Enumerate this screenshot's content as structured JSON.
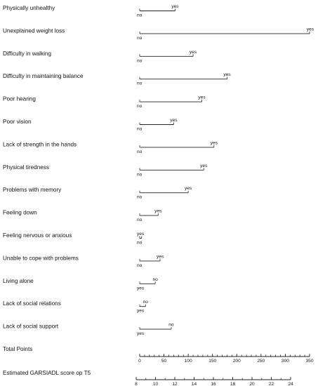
{
  "chart_data": {
    "type": "nomogram",
    "predictors": [
      {
        "label": "Physically unhealthy",
        "levels": [
          {
            "name": "no",
            "points": 0
          },
          {
            "name": "yes",
            "points": 73
          }
        ]
      },
      {
        "label": "Unexplained weight loss",
        "levels": [
          {
            "name": "no",
            "points": 0
          },
          {
            "name": "yes",
            "points": 350
          }
        ]
      },
      {
        "label": "Difficulty in walking",
        "levels": [
          {
            "name": "no",
            "points": 0
          },
          {
            "name": "yes",
            "points": 110
          }
        ]
      },
      {
        "label": "Difficulty in maintaining balance",
        "levels": [
          {
            "name": "no",
            "points": 0
          },
          {
            "name": "yes",
            "points": 180
          }
        ]
      },
      {
        "label": "Poor hearing",
        "levels": [
          {
            "name": "no",
            "points": 0
          },
          {
            "name": "yes",
            "points": 128
          }
        ]
      },
      {
        "label": "Poor vision",
        "levels": [
          {
            "name": "no",
            "points": 0
          },
          {
            "name": "yes",
            "points": 70
          }
        ]
      },
      {
        "label": "Lack of strength in the hands",
        "levels": [
          {
            "name": "no",
            "points": 0
          },
          {
            "name": "yes",
            "points": 153
          }
        ]
      },
      {
        "label": "Physical tiredness",
        "levels": [
          {
            "name": "no",
            "points": 0
          },
          {
            "name": "yes",
            "points": 132
          }
        ]
      },
      {
        "label": "Problems with memory",
        "levels": [
          {
            "name": "no",
            "points": 0
          },
          {
            "name": "yes",
            "points": 100
          }
        ]
      },
      {
        "label": "Feeling down",
        "levels": [
          {
            "name": "no",
            "points": 0
          },
          {
            "name": "yes",
            "points": 38
          }
        ]
      },
      {
        "label": "Feeling nervous or anxious",
        "levels": [
          {
            "name": "no",
            "points": 0
          },
          {
            "name": "yes",
            "points": 4
          }
        ]
      },
      {
        "label": "Unable to cope with problems",
        "levels": [
          {
            "name": "no",
            "points": 0
          },
          {
            "name": "yes",
            "points": 42
          }
        ]
      },
      {
        "label": "Living alone",
        "levels": [
          {
            "name": "yes",
            "points": 0
          },
          {
            "name": "no",
            "points": 32
          }
        ]
      },
      {
        "label": "Lack of social relations",
        "levels": [
          {
            "name": "yes",
            "points": 0
          },
          {
            "name": "no",
            "points": 12
          }
        ]
      },
      {
        "label": "Lack of social support",
        "levels": [
          {
            "name": "yes",
            "points": 0
          },
          {
            "name": "no",
            "points": 65
          }
        ]
      }
    ],
    "total_points": {
      "label": "Total Points",
      "range": [
        0,
        350
      ],
      "ticks": [
        0,
        50,
        100,
        150,
        200,
        250,
        300,
        350
      ]
    },
    "outcome": {
      "label": "Estimated GARSIADL score op T5",
      "range": [
        8,
        24
      ],
      "ticks": [
        8,
        10,
        12,
        14,
        16,
        18,
        20,
        22,
        24
      ]
    },
    "grid": false
  }
}
